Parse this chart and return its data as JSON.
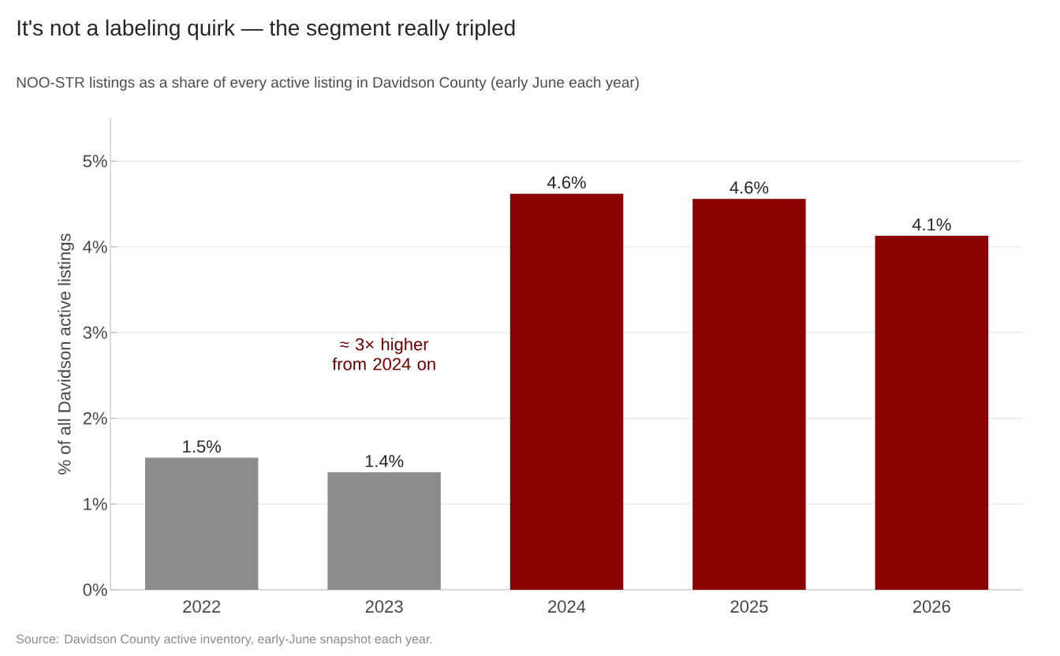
{
  "chart_data": {
    "type": "bar",
    "title": "It's not a labeling quirk — the segment really tripled",
    "subtitle": "NOO-STR listings as a share of every active listing in Davidson County (early June each year)",
    "ylabel": "% of all Davidson active listings",
    "annotations": [
      "≈ 3× higher from 2024 on",
      "Source: Davidson County active inventory, early-June snapshot each year."
    ],
    "categories": [
      "2022",
      "2023",
      "2024",
      "2025",
      "2026"
    ],
    "values": [
      1.54,
      1.37,
      4.62,
      4.56,
      4.13
    ],
    "colors": [
      "#8c8c8c",
      "#8c8c8c",
      "#8b0000",
      "#8b0000",
      "#8b0000"
    ],
    "value_labels": [
      "1.5%",
      "1.4%",
      "4.6%",
      "4.6%",
      "4.1%"
    ],
    "ylim": [
      0,
      5.5
    ],
    "yticks": [
      {
        "value": 0,
        "label": "0%"
      },
      {
        "value": 1,
        "label": "1%"
      },
      {
        "value": 2,
        "label": "2%"
      },
      {
        "value": 3,
        "label": "3%"
      },
      {
        "value": 4,
        "label": "4%"
      },
      {
        "value": 5,
        "label": "5%"
      }
    ],
    "grid": "y"
  }
}
